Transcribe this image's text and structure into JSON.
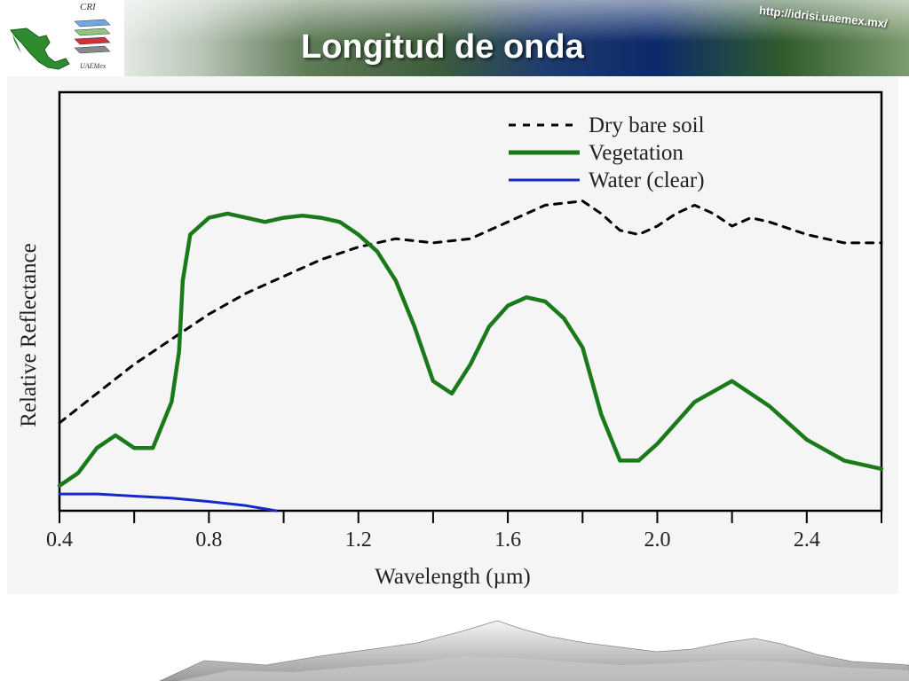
{
  "header": {
    "title": "Longitud de onda",
    "url": "http://idrisi.uaemex.mx/",
    "logo_top": "CRI",
    "logo_bottom": "UAEMex"
  },
  "chart_data": {
    "type": "line",
    "title": "",
    "xlabel": "Wavelength (µm)",
    "ylabel": "Relative Reflectance",
    "xlim": [
      0.4,
      2.6
    ],
    "ylim": [
      0,
      1
    ],
    "x_ticks": [
      "0.4",
      "0.8",
      "1.2",
      "1.6",
      "2.0",
      "2.4"
    ],
    "x_tick_values": [
      0.4,
      0.8,
      1.2,
      1.6,
      2.0,
      2.4
    ],
    "x_minor_ticks": [
      0.6,
      1.0,
      1.4,
      1.8,
      2.2,
      2.6
    ],
    "grid": false,
    "legend_position": "top-right",
    "series": [
      {
        "name": "Dry bare soil",
        "color": "#000000",
        "style": "dashed",
        "points": [
          [
            0.4,
            0.21
          ],
          [
            0.5,
            0.28
          ],
          [
            0.6,
            0.35
          ],
          [
            0.7,
            0.41
          ],
          [
            0.8,
            0.47
          ],
          [
            0.9,
            0.52
          ],
          [
            1.0,
            0.56
          ],
          [
            1.1,
            0.6
          ],
          [
            1.2,
            0.63
          ],
          [
            1.3,
            0.65
          ],
          [
            1.4,
            0.64
          ],
          [
            1.5,
            0.65
          ],
          [
            1.6,
            0.69
          ],
          [
            1.7,
            0.73
          ],
          [
            1.8,
            0.74
          ],
          [
            1.85,
            0.71
          ],
          [
            1.9,
            0.67
          ],
          [
            1.95,
            0.66
          ],
          [
            2.0,
            0.68
          ],
          [
            2.05,
            0.71
          ],
          [
            2.1,
            0.73
          ],
          [
            2.15,
            0.71
          ],
          [
            2.2,
            0.68
          ],
          [
            2.25,
            0.7
          ],
          [
            2.3,
            0.69
          ],
          [
            2.4,
            0.66
          ],
          [
            2.5,
            0.64
          ],
          [
            2.6,
            0.64
          ]
        ]
      },
      {
        "name": "Vegetation",
        "color": "#1a7a1a",
        "style": "solid",
        "points": [
          [
            0.4,
            0.06
          ],
          [
            0.45,
            0.09
          ],
          [
            0.5,
            0.15
          ],
          [
            0.55,
            0.18
          ],
          [
            0.6,
            0.15
          ],
          [
            0.65,
            0.15
          ],
          [
            0.7,
            0.26
          ],
          [
            0.72,
            0.38
          ],
          [
            0.73,
            0.55
          ],
          [
            0.75,
            0.66
          ],
          [
            0.8,
            0.7
          ],
          [
            0.85,
            0.71
          ],
          [
            0.9,
            0.7
          ],
          [
            0.95,
            0.69
          ],
          [
            1.0,
            0.7
          ],
          [
            1.05,
            0.705
          ],
          [
            1.1,
            0.7
          ],
          [
            1.15,
            0.69
          ],
          [
            1.2,
            0.66
          ],
          [
            1.25,
            0.62
          ],
          [
            1.3,
            0.55
          ],
          [
            1.35,
            0.44
          ],
          [
            1.4,
            0.31
          ],
          [
            1.45,
            0.28
          ],
          [
            1.5,
            0.35
          ],
          [
            1.55,
            0.44
          ],
          [
            1.6,
            0.49
          ],
          [
            1.65,
            0.51
          ],
          [
            1.7,
            0.5
          ],
          [
            1.75,
            0.46
          ],
          [
            1.8,
            0.39
          ],
          [
            1.85,
            0.23
          ],
          [
            1.9,
            0.12
          ],
          [
            1.95,
            0.12
          ],
          [
            2.0,
            0.16
          ],
          [
            2.1,
            0.26
          ],
          [
            2.2,
            0.31
          ],
          [
            2.3,
            0.25
          ],
          [
            2.4,
            0.17
          ],
          [
            2.5,
            0.12
          ],
          [
            2.6,
            0.1
          ]
        ]
      },
      {
        "name": "Water (clear)",
        "color": "#1528c8",
        "style": "solid",
        "points": [
          [
            0.4,
            0.04
          ],
          [
            0.5,
            0.04
          ],
          [
            0.6,
            0.035
          ],
          [
            0.7,
            0.03
          ],
          [
            0.8,
            0.022
          ],
          [
            0.9,
            0.012
          ],
          [
            0.98,
            0.0
          ]
        ]
      }
    ]
  },
  "colors": {
    "panel_background": "#f5f5f5",
    "axis": "#000000",
    "title_text": "#ffffff"
  }
}
